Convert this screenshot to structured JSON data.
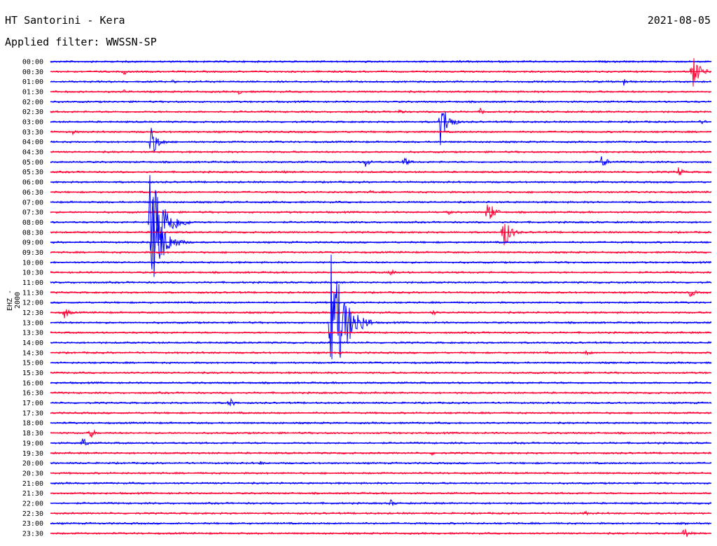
{
  "header": {
    "station": "HT Santorini - Kera",
    "date": "2021-08-05",
    "filter": "Applied filter: WWSSN-SP",
    "channel": "EHZ - 2000"
  },
  "colors": {
    "even_trace": "#0000ff",
    "odd_trace": "#ff0033",
    "text": "#000000"
  },
  "chart_data": {
    "type": "line",
    "title": "HT Santorini - Kera",
    "subtitle": "Applied filter: WWSSN-SP",
    "ylabel": "EHZ - 2000",
    "x_range_minutes": [
      0,
      30
    ],
    "rows": [
      "00:00",
      "00:30",
      "01:00",
      "01:30",
      "02:00",
      "02:30",
      "03:00",
      "03:30",
      "04:00",
      "04:30",
      "05:00",
      "05:30",
      "06:00",
      "06:30",
      "07:00",
      "07:30",
      "08:00",
      "08:30",
      "09:00",
      "09:30",
      "10:00",
      "10:30",
      "11:00",
      "11:30",
      "12:00",
      "12:30",
      "13:00",
      "13:30",
      "14:00",
      "14:30",
      "15:00",
      "15:30",
      "16:00",
      "16:30",
      "17:00",
      "17:30",
      "18:00",
      "18:30",
      "19:00",
      "19:30",
      "20:00",
      "20:30",
      "21:00",
      "21:30",
      "22:00",
      "22:30",
      "23:00",
      "23:30"
    ],
    "grid": false,
    "legend": "none",
    "events": [
      {
        "row": "00:00",
        "minute": 18.5,
        "amplitude": 3
      },
      {
        "row": "00:30",
        "minute": 3.3,
        "amplitude": 6
      },
      {
        "row": "00:30",
        "minute": 29.1,
        "amplitude": 30
      },
      {
        "row": "01:00",
        "minute": 5.5,
        "amplitude": 4
      },
      {
        "row": "01:00",
        "minute": 26.0,
        "amplitude": 8
      },
      {
        "row": "01:30",
        "minute": 3.3,
        "amplitude": 4
      },
      {
        "row": "01:30",
        "minute": 8.5,
        "amplitude": 5
      },
      {
        "row": "02:30",
        "minute": 15.8,
        "amplitude": 5
      },
      {
        "row": "02:30",
        "minute": 19.5,
        "amplitude": 6
      },
      {
        "row": "03:00",
        "minute": 17.7,
        "amplitude": 34
      },
      {
        "row": "03:00",
        "minute": 29.5,
        "amplitude": 6
      },
      {
        "row": "03:30",
        "minute": 1.0,
        "amplitude": 4
      },
      {
        "row": "04:00",
        "minute": 4.5,
        "amplitude": 28
      },
      {
        "row": "05:00",
        "minute": 14.3,
        "amplitude": 8
      },
      {
        "row": "05:00",
        "minute": 16.0,
        "amplitude": 10
      },
      {
        "row": "05:00",
        "minute": 25.0,
        "amplitude": 12
      },
      {
        "row": "05:30",
        "minute": 10.5,
        "amplitude": 4
      },
      {
        "row": "05:30",
        "minute": 28.5,
        "amplitude": 8
      },
      {
        "row": "06:30",
        "minute": 14.5,
        "amplitude": 4
      },
      {
        "row": "07:30",
        "minute": 18.0,
        "amplitude": 5
      },
      {
        "row": "07:30",
        "minute": 19.8,
        "amplitude": 22
      },
      {
        "row": "08:00",
        "minute": 4.5,
        "amplitude": 90
      },
      {
        "row": "08:30",
        "minute": 20.5,
        "amplitude": 30
      },
      {
        "row": "09:00",
        "minute": 4.6,
        "amplitude": 70
      },
      {
        "row": "10:30",
        "minute": 15.4,
        "amplitude": 8
      },
      {
        "row": "11:30",
        "minute": 29.0,
        "amplitude": 9
      },
      {
        "row": "12:30",
        "minute": 0.6,
        "amplitude": 11
      },
      {
        "row": "12:30",
        "minute": 17.3,
        "amplitude": 6
      },
      {
        "row": "13:00",
        "minute": 12.7,
        "amplitude": 108
      },
      {
        "row": "14:30",
        "minute": 24.3,
        "amplitude": 6
      },
      {
        "row": "17:00",
        "minute": 8.1,
        "amplitude": 9
      },
      {
        "row": "18:30",
        "minute": 1.8,
        "amplitude": 9
      },
      {
        "row": "19:00",
        "minute": 1.4,
        "amplitude": 11
      },
      {
        "row": "19:30",
        "minute": 17.3,
        "amplitude": 4
      },
      {
        "row": "20:00",
        "minute": 9.5,
        "amplitude": 4
      },
      {
        "row": "22:00",
        "minute": 15.4,
        "amplitude": 7
      },
      {
        "row": "22:30",
        "minute": 24.2,
        "amplitude": 5
      },
      {
        "row": "23:00",
        "minute": 28.7,
        "amplitude": 6
      },
      {
        "row": "23:30",
        "minute": 28.7,
        "amplitude": 12
      }
    ]
  }
}
